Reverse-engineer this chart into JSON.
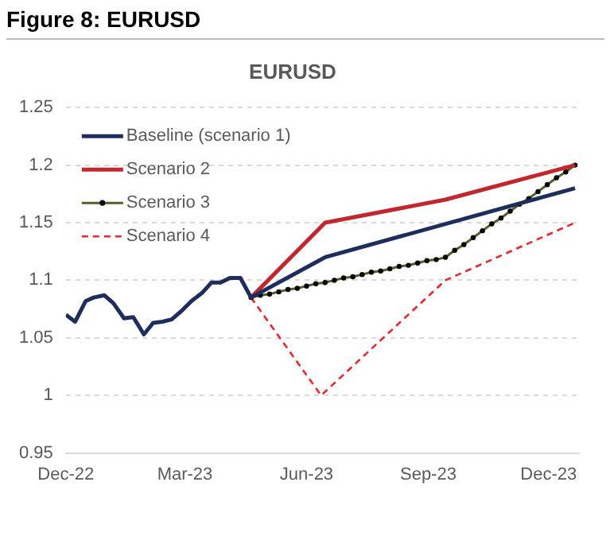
{
  "chart_data": {
    "type": "line",
    "title": "Figure 8: EURUSD",
    "subtitle": "EURUSD",
    "xlim": [
      "2022-12-01",
      "2023-12-24"
    ],
    "xticks": [
      {
        "value": "2022-12-01",
        "label": "Dec-22"
      },
      {
        "value": "2023-03-01",
        "label": "Mar-23"
      },
      {
        "value": "2023-06-01",
        "label": "Jun-23"
      },
      {
        "value": "2023-09-01",
        "label": "Sep-23"
      },
      {
        "value": "2023-12-01",
        "label": "Dec-23"
      }
    ],
    "ylim": [
      0.95,
      1.25
    ],
    "yticks": [
      0.95,
      1,
      1.05,
      1.1,
      1.15,
      1.2,
      1.25
    ],
    "grid": "y",
    "legend": "top left",
    "series": [
      {
        "name": "Baseline (scenario 1)",
        "color": "#1f2d5c",
        "marker": "none",
        "line_style": "solid",
        "x": [
          "2022-12-01",
          "2022-12-08",
          "2022-12-16",
          "2022-12-22",
          "2022-12-30",
          "2023-01-06",
          "2023-01-14",
          "2023-01-21",
          "2023-01-29",
          "2023-02-05",
          "2023-02-12",
          "2023-02-19",
          "2023-02-27",
          "2023-03-06",
          "2023-03-14",
          "2023-03-21",
          "2023-03-28",
          "2023-04-04",
          "2023-04-12",
          "2023-04-20",
          "2023-06-15",
          "2023-12-21"
        ],
        "values": [
          1.07,
          1.064,
          1.082,
          1.085,
          1.087,
          1.08,
          1.067,
          1.068,
          1.053,
          1.063,
          1.064,
          1.066,
          1.074,
          1.082,
          1.089,
          1.098,
          1.098,
          1.102,
          1.102,
          1.085,
          1.12,
          1.18
        ]
      },
      {
        "name": "Scenario 2",
        "color": "#c0282e",
        "marker": "none",
        "line_style": "solid",
        "x": [
          "2023-04-20",
          "2023-06-15",
          "2023-09-14",
          "2023-12-21"
        ],
        "values": [
          1.085,
          1.15,
          1.17,
          1.2
        ]
      },
      {
        "name": "Scenario 3",
        "color": "#4f6228",
        "marker": "circle",
        "line_style": "solid",
        "x": [
          "2023-04-20",
          "2023-04-27",
          "2023-05-04",
          "2023-05-11",
          "2023-05-18",
          "2023-05-25",
          "2023-06-01",
          "2023-06-08",
          "2023-06-15",
          "2023-06-22",
          "2023-06-29",
          "2023-07-06",
          "2023-07-13",
          "2023-07-20",
          "2023-07-27",
          "2023-08-03",
          "2023-08-10",
          "2023-08-17",
          "2023-08-24",
          "2023-08-31",
          "2023-09-07",
          "2023-09-14",
          "2023-09-21",
          "2023-09-28",
          "2023-10-05",
          "2023-10-12",
          "2023-10-19",
          "2023-10-26",
          "2023-11-02",
          "2023-11-09",
          "2023-11-16",
          "2023-11-23",
          "2023-11-30",
          "2023-12-07",
          "2023-12-14",
          "2023-12-21"
        ],
        "values": [
          1.085,
          1.087,
          1.088,
          1.09,
          1.092,
          1.093,
          1.095,
          1.097,
          1.098,
          1.1,
          1.102,
          1.103,
          1.105,
          1.107,
          1.108,
          1.11,
          1.112,
          1.113,
          1.115,
          1.117,
          1.118,
          1.12,
          1.126,
          1.131,
          1.137,
          1.143,
          1.149,
          1.154,
          1.16,
          1.166,
          1.171,
          1.177,
          1.183,
          1.189,
          1.194,
          1.2
        ]
      },
      {
        "name": "Scenario 4",
        "color": "#e8262e",
        "marker": "none",
        "line_style": "dashed",
        "x": [
          "2023-04-20",
          "2023-06-12",
          "2023-09-14",
          "2023-12-21"
        ],
        "values": [
          1.085,
          1.0,
          1.1,
          1.15
        ]
      }
    ]
  }
}
